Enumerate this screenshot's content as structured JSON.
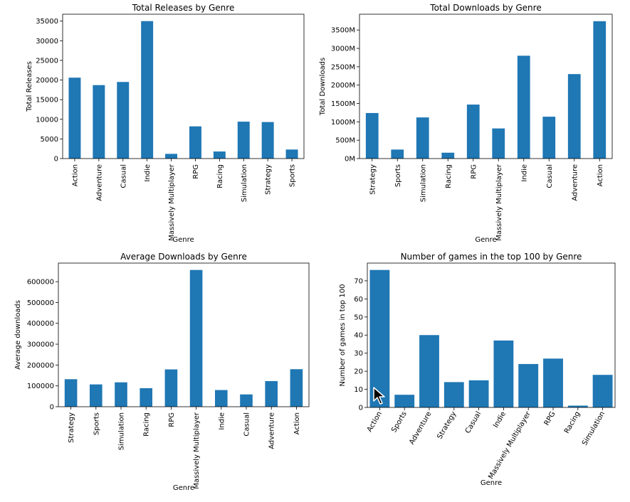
{
  "chart_data": [
    {
      "type": "bar",
      "title": "Total Releases by Genre",
      "xlabel": "Genre",
      "ylabel": "Total Releases",
      "categories": [
        "Action",
        "Adventure",
        "Casual",
        "Indie",
        "Massively Multiplayer",
        "RPG",
        "Racing",
        "Simulation",
        "Strategy",
        "Sports"
      ],
      "values": [
        20600,
        18700,
        19500,
        35000,
        1200,
        8200,
        1800,
        9400,
        9300,
        2300
      ],
      "ylim": [
        0,
        36750
      ],
      "yticks": [
        0,
        5000,
        10000,
        15000,
        20000,
        25000,
        30000,
        35000
      ],
      "ytick_labels": [
        "0",
        "5000",
        "10000",
        "15000",
        "20000",
        "25000",
        "30000",
        "35000"
      ],
      "xtick_rotation": -90,
      "color": "#1f77b4"
    },
    {
      "type": "bar",
      "title": "Total Downloads by Genre",
      "xlabel": "Genre",
      "ylabel": "Total Downloads",
      "categories": [
        "Strategy",
        "Sports",
        "Simulation",
        "Racing",
        "RPG",
        "Massively Multiplayer",
        "Indie",
        "Casual",
        "Adventure",
        "Action"
      ],
      "values": [
        1240,
        245,
        1120,
        160,
        1470,
        820,
        2800,
        1140,
        2300,
        3740
      ],
      "ylim": [
        0,
        3930
      ],
      "yticks": [
        0,
        500,
        1000,
        1500,
        2000,
        2500,
        3000,
        3500
      ],
      "ytick_labels": [
        "0M",
        "500M",
        "1000M",
        "1500M",
        "2000M",
        "2500M",
        "3000M",
        "3500M"
      ],
      "xtick_rotation": -90,
      "color": "#1f77b4"
    },
    {
      "type": "bar",
      "title": "Average Downloads by Genre",
      "xlabel": "Genre",
      "ylabel": "Average downloads",
      "categories": [
        "Strategy",
        "Sports",
        "Simulation",
        "Racing",
        "RPG",
        "Massively Multiplayer",
        "Indie",
        "Casual",
        "Adventure",
        "Action"
      ],
      "values": [
        132000,
        107000,
        117000,
        89000,
        179000,
        656000,
        80000,
        59000,
        123000,
        180000
      ],
      "ylim": [
        0,
        689000
      ],
      "yticks": [
        0,
        100000,
        200000,
        300000,
        400000,
        500000,
        600000
      ],
      "ytick_labels": [
        "0",
        "100000",
        "200000",
        "300000",
        "400000",
        "500000",
        "600000"
      ],
      "xtick_rotation": -90,
      "color": "#1f77b4"
    },
    {
      "type": "bar",
      "title": "Number of games in the top 100 by Genre",
      "xlabel": "Genre",
      "ylabel": "Number of games in top 100",
      "categories": [
        "Action",
        "Sports",
        "Adventure",
        "Strategy",
        "Casual",
        "Indie",
        "Massively Multiplayer",
        "RPG",
        "Racing",
        "Simulation"
      ],
      "values": [
        76,
        7,
        40,
        14,
        15,
        37,
        24,
        27,
        1,
        18
      ],
      "ylim": [
        0,
        79.8
      ],
      "yticks": [
        0,
        10,
        20,
        30,
        40,
        50,
        60,
        70
      ],
      "ytick_labels": [
        "0",
        "10",
        "20",
        "30",
        "40",
        "50",
        "60",
        "70"
      ],
      "xtick_rotation": -60,
      "color": "#1f77b4"
    }
  ]
}
